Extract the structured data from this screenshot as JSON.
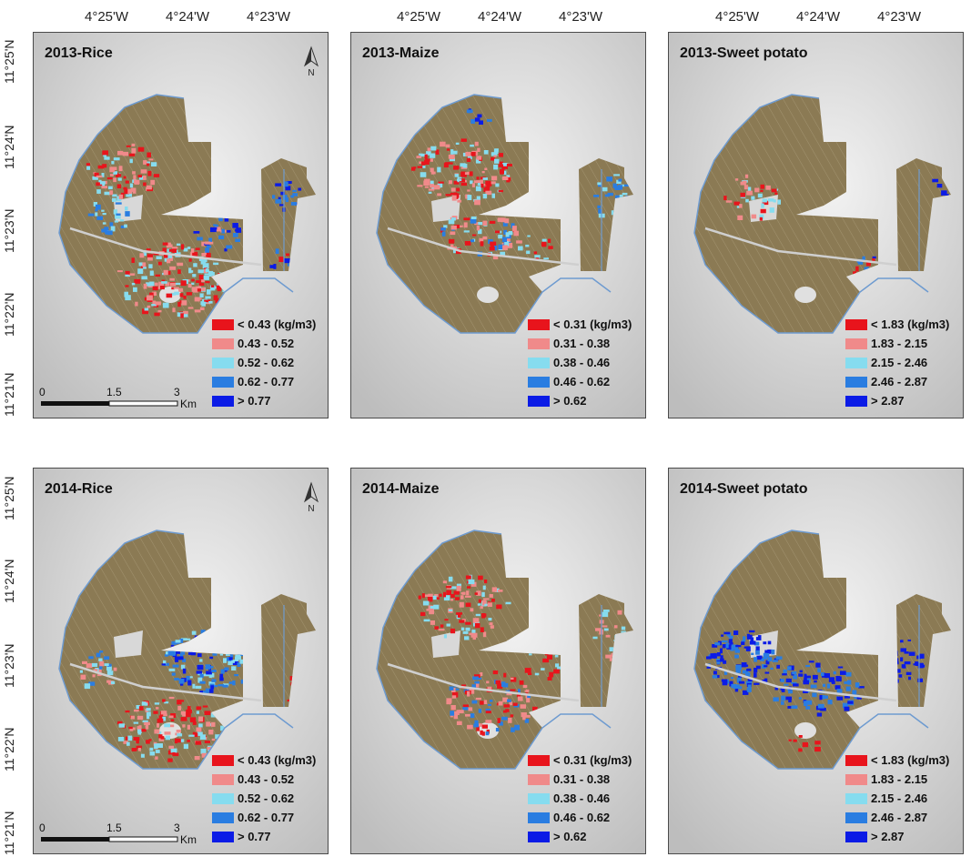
{
  "longitude_labels": [
    "4°25'W",
    "4°24'W",
    "4°23'W"
  ],
  "latitude_labels": [
    "11°25'N",
    "11°24'N",
    "11°23'N",
    "11°22'N",
    "11°21'N"
  ],
  "colors": {
    "low": "#e8141c",
    "low_mid": "#f08a8a",
    "mid": "#86dcef",
    "mid_high": "#2a7de1",
    "high": "#0b1be6",
    "field": "#8b7a54",
    "background": "#d6d6d6",
    "canal": "#6e9bd0"
  },
  "north_arrow": {
    "label": "N"
  },
  "scale_bar": {
    "ticks": [
      "0",
      "1.5",
      "3"
    ],
    "unit": "Km"
  },
  "panels": [
    {
      "title": "2013-Rice",
      "legend": [
        "< 0.43 (kg/m3)",
        "0.43 - 0.52",
        "0.52 - 0.62",
        "0.62 - 0.77",
        "> 0.77"
      ]
    },
    {
      "title": "2013-Maize",
      "legend": [
        "< 0.31 (kg/m3)",
        "0.31 - 0.38",
        "0.38 - 0.46",
        "0.46 - 0.62",
        "> 0.62"
      ]
    },
    {
      "title": "2013-Sweet potato",
      "legend": [
        "< 1.83 (kg/m3)",
        "1.83 - 2.15",
        "2.15 - 2.46",
        "2.46 - 2.87",
        "> 2.87"
      ]
    },
    {
      "title": "2014-Rice",
      "legend": [
        "< 0.43 (kg/m3)",
        "0.43 - 0.52",
        "0.52 - 0.62",
        "0.62 - 0.77",
        "> 0.77"
      ]
    },
    {
      "title": "2014-Maize",
      "legend": [
        "<  0.31 (kg/m3)",
        "0.31 - 0.38",
        "0.38 - 0.46",
        "0.46 - 0.62",
        "> 0.62"
      ]
    },
    {
      "title": "2014-Sweet potato",
      "legend": [
        "< 1.83 (kg/m3)",
        "1.83 - 2.15",
        "2.15 - 2.46",
        "2.46 - 2.87",
        "> 2.87"
      ]
    }
  ]
}
